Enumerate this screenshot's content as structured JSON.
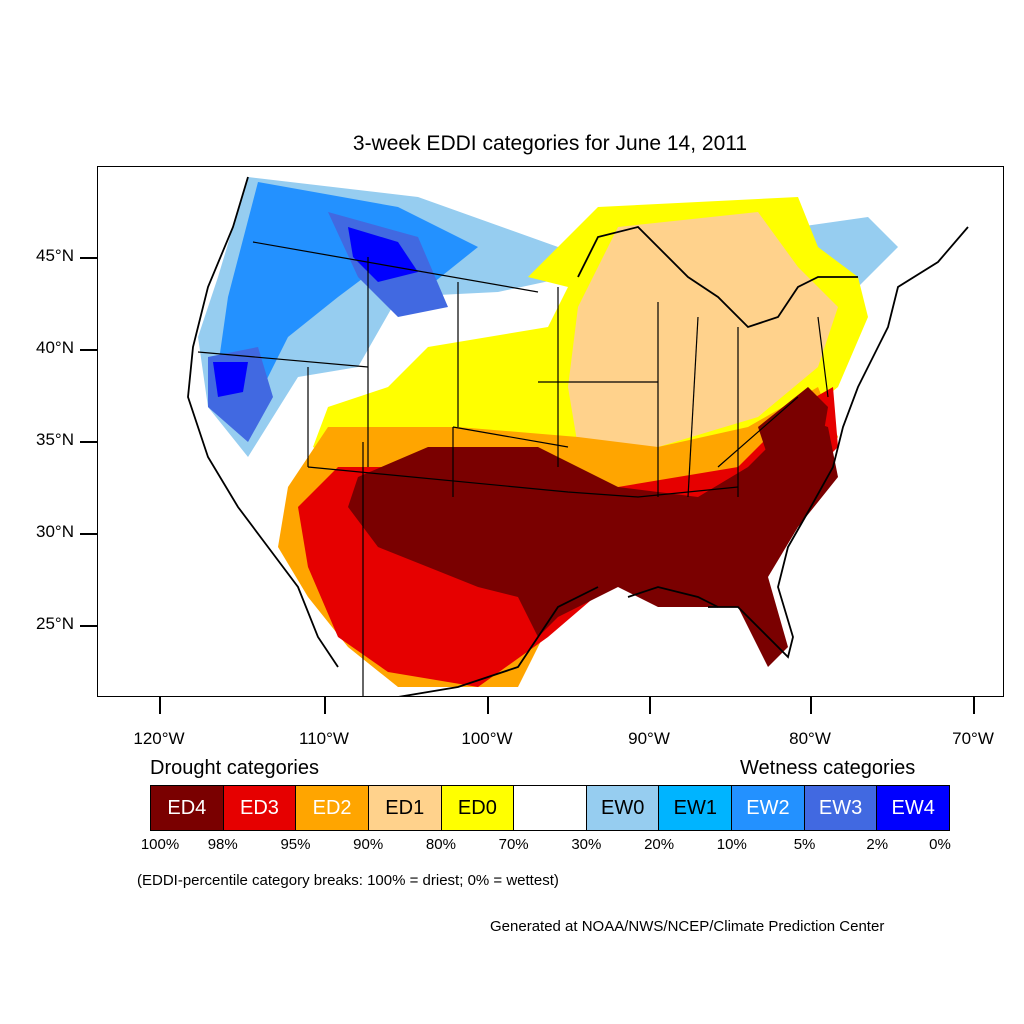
{
  "title": "3-week EDDI categories for June 14, 2011",
  "latitude_labels": [
    "45°N",
    "40°N",
    "35°N",
    "30°N",
    "25°N"
  ],
  "longitude_labels": [
    "120°W",
    "110°W",
    "100°W",
    "90°W",
    "80°W",
    "70°W"
  ],
  "legend": {
    "drought_heading": "Drought categories",
    "wetness_heading": "Wetness categories",
    "categories": [
      {
        "label": "ED4",
        "color": "#7a0000",
        "text_color": "#ffffff"
      },
      {
        "label": "ED3",
        "color": "#e60000",
        "text_color": "#ffffff"
      },
      {
        "label": "ED2",
        "color": "#ffa500",
        "text_color": "#ffffff"
      },
      {
        "label": "ED1",
        "color": "#ffd28c",
        "text_color": "#000000"
      },
      {
        "label": "ED0",
        "color": "#ffff00",
        "text_color": "#000000"
      },
      {
        "label": "",
        "color": "#ffffff",
        "text_color": "#000000"
      },
      {
        "label": "EW0",
        "color": "#96cdf0",
        "text_color": "#000000"
      },
      {
        "label": "EW1",
        "color": "#00b4ff",
        "text_color": "#000000"
      },
      {
        "label": "EW2",
        "color": "#2391ff",
        "text_color": "#ffffff"
      },
      {
        "label": "EW3",
        "color": "#4169e1",
        "text_color": "#ffffff"
      },
      {
        "label": "EW4",
        "color": "#0000ff",
        "text_color": "#ffffff"
      }
    ],
    "breaks": [
      "100%",
      "98%",
      "95%",
      "90%",
      "80%",
      "70%",
      "30%",
      "20%",
      "10%",
      "5%",
      "2%",
      "0%"
    ]
  },
  "note": "(EDDI-percentile category breaks: 100% = driest; 0% = wettest)",
  "credit": "Generated at NOAA/NWS/NCEP/Climate Prediction Center"
}
